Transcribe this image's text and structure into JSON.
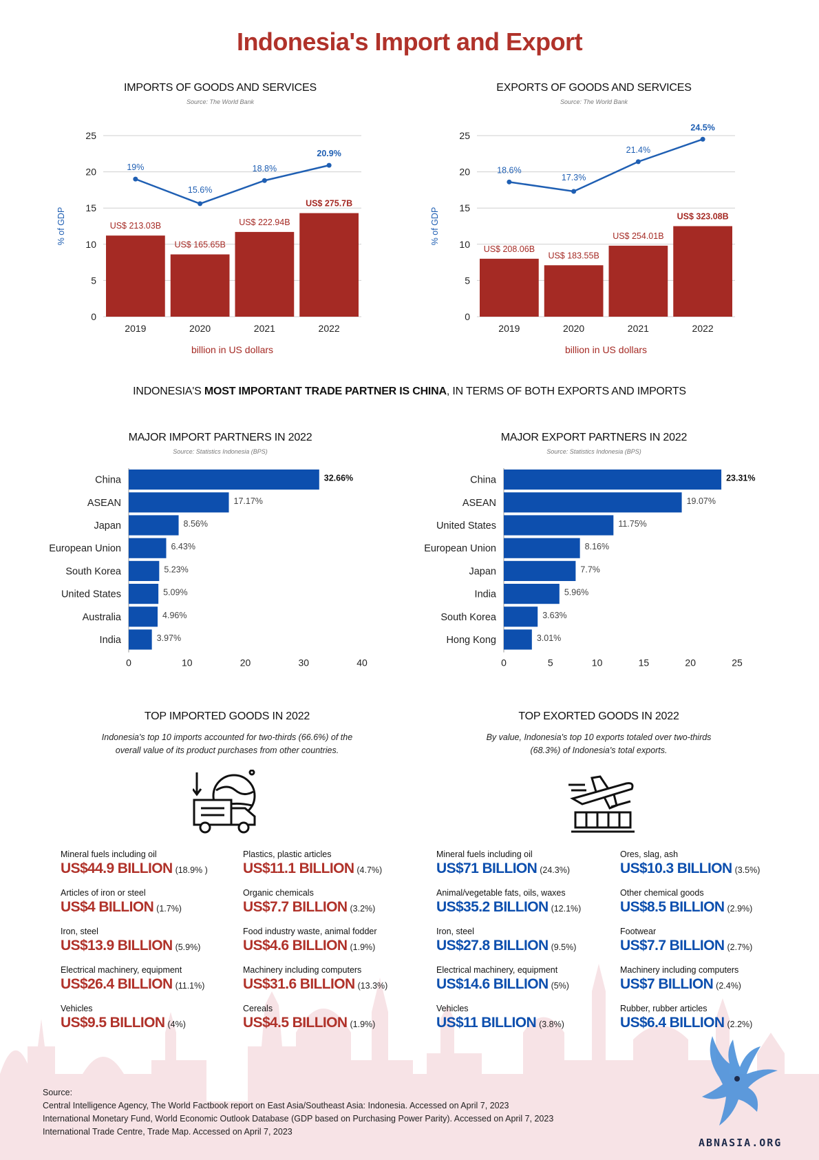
{
  "page_title": "Indonesia's Import and Export",
  "charts_top": [
    {
      "title": "IMPORTS OF GOODS AND SERVICES",
      "source": "Source: The World Bank",
      "ylabel": "% of GDP",
      "xlabel": "billion in US dollars"
    },
    {
      "title": "EXPORTS OF GOODS AND SERVICES",
      "source": "Source: The World Bank",
      "ylabel": "% of GDP",
      "xlabel": "billion in US dollars"
    }
  ],
  "trade_partner_line": {
    "pre": "INDONESIA'S ",
    "bold": "MOST IMPORTANT TRADE PARTNER IS CHINA",
    "post": ", IN TERMS OF BOTH EXPORTS AND IMPORTS"
  },
  "charts_partners": [
    {
      "title": "MAJOR IMPORT PARTNERS IN 2022",
      "source": "Source: Statistics Indonesia (BPS)"
    },
    {
      "title": "MAJOR EXPORT PARTNERS IN 2022",
      "source": "Source: Statistics Indonesia (BPS)"
    }
  ],
  "chart_data": [
    {
      "type": "bar",
      "title": "IMPORTS OF GOODS AND SERVICES",
      "categories": [
        "2019",
        "2020",
        "2021",
        "2022"
      ],
      "series": [
        {
          "values": [
            213.03,
            165.65,
            222.94,
            275.7
          ],
          "labels": [
            "US$ 213.03B",
            "US$ 165.65B",
            "US$ 222.94B",
            "US$ 275.7B"
          ],
          "bar_height_gdp": [
            11.2,
            8.6,
            11.7,
            14.3
          ]
        },
        {
          "values": [
            19,
            15.6,
            18.8,
            20.9
          ],
          "labels": [
            "19%",
            "15.6%",
            "18.8%",
            "20.9%"
          ]
        }
      ],
      "ylabel": "% of GDP",
      "xlabel": "billion in US dollars",
      "ylim": [
        0,
        25
      ],
      "yticks": [
        0,
        5,
        10,
        15,
        20,
        25
      ],
      "grid": true,
      "colors": {
        "bar": "#a52a24",
        "line": "#1f5fb3"
      }
    },
    {
      "type": "bar",
      "title": "EXPORTS OF GOODS AND SERVICES",
      "categories": [
        "2019",
        "2020",
        "2021",
        "2022"
      ],
      "series": [
        {
          "values": [
            208.06,
            183.55,
            254.01,
            323.08
          ],
          "labels": [
            "US$ 208.06B",
            "US$ 183.55B",
            "US$ 254.01B",
            "US$ 323.08B"
          ],
          "bar_height_gdp": [
            8.0,
            7.1,
            9.8,
            12.5
          ]
        },
        {
          "values": [
            18.6,
            17.3,
            21.4,
            24.5
          ],
          "labels": [
            "18.6%",
            "17.3%",
            "21.4%",
            "24.5%"
          ]
        }
      ],
      "ylabel": "% of GDP",
      "xlabel": "billion in US dollars",
      "ylim": [
        0,
        25
      ],
      "yticks": [
        0,
        5,
        10,
        15,
        20,
        25
      ],
      "grid": true,
      "colors": {
        "bar": "#a52a24",
        "line": "#1f5fb3"
      }
    },
    {
      "type": "bar",
      "orientation": "horizontal",
      "title": "MAJOR IMPORT PARTNERS IN 2022",
      "categories": [
        "China",
        "ASEAN",
        "Japan",
        "European Union",
        "South Korea",
        "United States",
        "Australia",
        "India"
      ],
      "values": [
        32.66,
        17.17,
        8.56,
        6.43,
        5.23,
        5.09,
        4.96,
        3.97
      ],
      "labels": [
        "32.66%",
        "17.17%",
        "8.56%",
        "6.43%",
        "5.23%",
        "5.09%",
        "4.96%",
        "3.97%"
      ],
      "xlim": [
        0,
        40
      ],
      "xticks": [
        0,
        10,
        20,
        30,
        40
      ],
      "colors": {
        "bar": "#0d4fae"
      }
    },
    {
      "type": "bar",
      "orientation": "horizontal",
      "title": "MAJOR EXPORT PARTNERS IN 2022",
      "categories": [
        "China",
        "ASEAN",
        "United States",
        "European Union",
        "Japan",
        "India",
        "South Korea",
        "Hong Kong"
      ],
      "values": [
        23.31,
        19.07,
        11.75,
        8.16,
        7.7,
        5.96,
        3.63,
        3.01
      ],
      "labels": [
        "23.31%",
        "19.07%",
        "11.75%",
        "8.16%",
        "7.7%",
        "5.96%",
        "3.63%",
        "3.01%"
      ],
      "xlim": [
        0,
        25
      ],
      "xticks": [
        0,
        5,
        10,
        15,
        20,
        25
      ],
      "colors": {
        "bar": "#0d4fae"
      }
    }
  ],
  "imported_goods": {
    "title": "TOP IMPORTED GOODS IN 2022",
    "desc_line1": "Indonesia's top 10 imports accounted for two-thirds (66.6%) of the",
    "desc_line2": "overall value of its product purchases from other countries.",
    "icon": "import-truck-globe-icon",
    "items": [
      {
        "name": "Mineral fuels including oil",
        "value": "US$44.9 BILLION",
        "pct": "(18.9% )"
      },
      {
        "name": "Plastics, plastic articles",
        "value": "US$11.1 BILLION",
        "pct": "(4.7%)"
      },
      {
        "name": "Articles of iron or steel",
        "value": "US$4 BILLION",
        "pct": "(1.7%)"
      },
      {
        "name": "Organic chemicals",
        "value": "US$7.7 BILLION",
        "pct": "(3.2%)"
      },
      {
        "name": "Iron, steel",
        "value": "US$13.9 BILLION",
        "pct": "(5.9%)"
      },
      {
        "name": "Food industry waste, animal fodder",
        "value": "US$4.6 BILLION",
        "pct": "(1.9%)"
      },
      {
        "name": "Electrical machinery, equipment",
        "value": "US$26.4 BILLION",
        "pct": "(11.1%)"
      },
      {
        "name": "Machinery including computers",
        "value": "US$31.6 BILLION",
        "pct": "(13.3%)"
      },
      {
        "name": "Vehicles",
        "value": "US$9.5 BILLION",
        "pct": "(4%)"
      },
      {
        "name": "Cereals",
        "value": "US$4.5 BILLION",
        "pct": "(1.9%)"
      }
    ]
  },
  "exported_goods": {
    "title": "TOP EXORTED GOODS IN 2022",
    "desc_line1": "By value, Indonesia's top 10 exports totaled over two-thirds",
    "desc_line2": "(68.3%) of Indonesia's total exports.",
    "icon": "export-plane-cargo-icon",
    "items": [
      {
        "name": "Mineral fuels including oil",
        "value": "US$71 BILLION",
        "pct": "(24.3%)"
      },
      {
        "name": "Ores, slag, ash",
        "value": "US$10.3 BILLION",
        "pct": "(3.5%)"
      },
      {
        "name": "Animal/vegetable fats, oils, waxes",
        "value": "US$35.2 BILLION",
        "pct": "(12.1%)"
      },
      {
        "name": "Other chemical goods",
        "value": "US$8.5 BILLION",
        "pct": "(2.9%)"
      },
      {
        "name": "Iron, steel",
        "value": "US$27.8 BILLION",
        "pct": "(9.5%)"
      },
      {
        "name": "Footwear",
        "value": "US$7.7 BILLION",
        "pct": "(2.7%)"
      },
      {
        "name": "Electrical machinery, equipment",
        "value": "US$14.6 BILLION",
        "pct": "(5%)"
      },
      {
        "name": "Machinery including computers",
        "value": "US$7 BILLION",
        "pct": "(2.4%)"
      },
      {
        "name": "Vehicles",
        "value": "US$11 BILLION",
        "pct": "(3.8%)"
      },
      {
        "name": "Rubber, rubber articles",
        "value": "US$6.4 BILLION",
        "pct": "(2.2%)"
      }
    ]
  },
  "sources": {
    "label": "Source:",
    "lines": [
      "Central Intelligence Agency, The World Factbook report on East Asia/Southeast Asia: Indonesia. Accessed on April 7, 2023",
      "International Monetary Fund, World Economic Outlook Database (GDP based on Purchasing Power Parity). Accessed on April 7, 2023",
      "International Trade Centre, Trade Map. Accessed on April 7, 2023"
    ]
  },
  "brand": "ABNASIA.ORG",
  "colors": {
    "title": "#b0322a",
    "bar_red": "#a52a24",
    "line_blue": "#1f5fb3",
    "bar_blue": "#0d4fae",
    "skyline_pink": "#f6dfe3",
    "garuda_blue": "#4a90d9"
  }
}
